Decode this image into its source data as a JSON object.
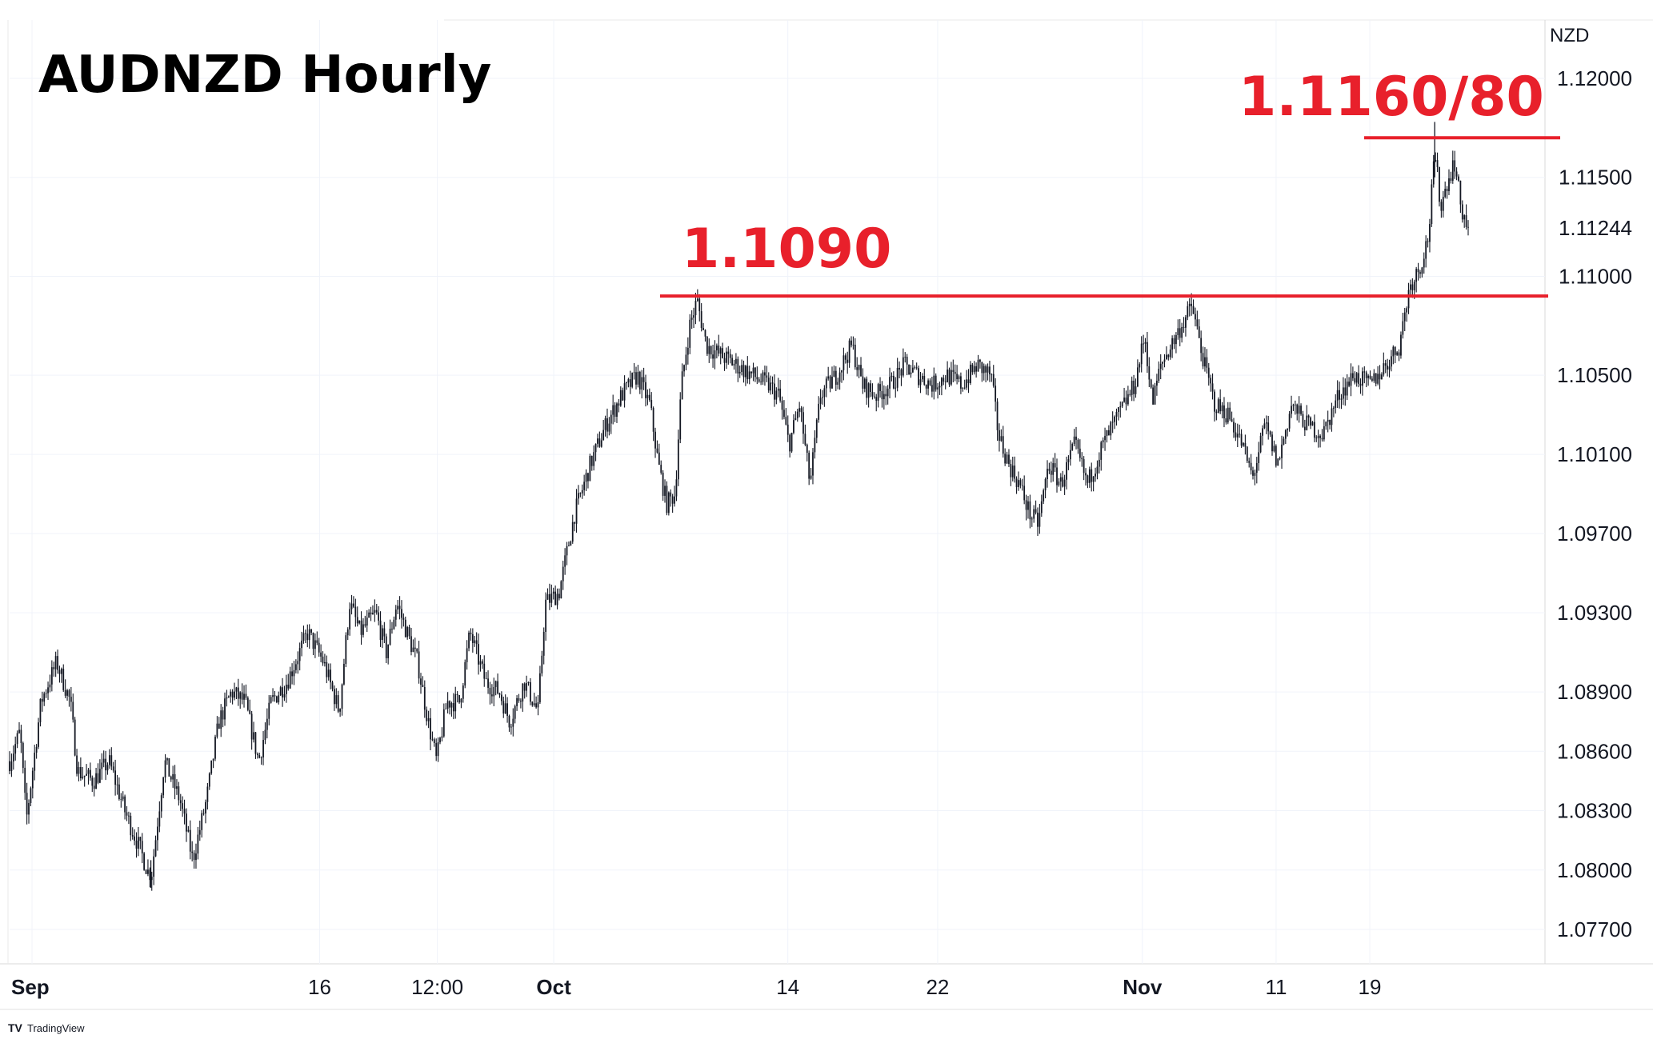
{
  "chart_data": {
    "type": "candlestick",
    "title": "AUDNZD Hourly",
    "currency": "NZD",
    "watermark": "TradingView",
    "ylim": [
      1.0755,
      1.1215
    ],
    "y_ticks": [
      "1.12000",
      "1.11500",
      "1.11244",
      "1.11000",
      "1.10500",
      "1.10100",
      "1.09700",
      "1.09300",
      "1.08900",
      "1.08600",
      "1.08300",
      "1.08000",
      "1.07700"
    ],
    "x_ticks": [
      {
        "label": "Sep",
        "pos": 0.0,
        "bold": true
      },
      {
        "label": "16",
        "pos": 0.215,
        "bold": false
      },
      {
        "label": "12:00",
        "pos": 0.303,
        "bold": false
      },
      {
        "label": "Oct",
        "pos": 0.39,
        "bold": true
      },
      {
        "label": "14",
        "pos": 0.565,
        "bold": false
      },
      {
        "label": "22",
        "pos": 0.677,
        "bold": false
      },
      {
        "label": "Nov",
        "pos": 0.83,
        "bold": true
      },
      {
        "label": "11",
        "pos": 0.93,
        "bold": false
      },
      {
        "label": "19",
        "pos": 1.0,
        "bold": false
      }
    ],
    "key_points": [
      {
        "t": 0.0,
        "v": 1.0855
      },
      {
        "t": 0.01,
        "v": 1.087
      },
      {
        "t": 0.016,
        "v": 1.0825
      },
      {
        "t": 0.03,
        "v": 1.0885
      },
      {
        "t": 0.045,
        "v": 1.0905
      },
      {
        "t": 0.058,
        "v": 1.0885
      },
      {
        "t": 0.065,
        "v": 1.085
      },
      {
        "t": 0.08,
        "v": 1.0845
      },
      {
        "t": 0.095,
        "v": 1.0855
      },
      {
        "t": 0.11,
        "v": 1.083
      },
      {
        "t": 0.125,
        "v": 1.081
      },
      {
        "t": 0.135,
        "v": 1.0795
      },
      {
        "t": 0.148,
        "v": 1.0855
      },
      {
        "t": 0.163,
        "v": 1.0835
      },
      {
        "t": 0.175,
        "v": 1.0805
      },
      {
        "t": 0.188,
        "v": 1.0835
      },
      {
        "t": 0.2,
        "v": 1.0875
      },
      {
        "t": 0.212,
        "v": 1.089
      },
      {
        "t": 0.225,
        "v": 1.0885
      },
      {
        "t": 0.238,
        "v": 1.0855
      },
      {
        "t": 0.25,
        "v": 1.0885
      },
      {
        "t": 0.265,
        "v": 1.0895
      },
      {
        "t": 0.285,
        "v": 1.092
      },
      {
        "t": 0.3,
        "v": 1.0905
      },
      {
        "t": 0.315,
        "v": 1.088
      },
      {
        "t": 0.325,
        "v": 1.0935
      },
      {
        "t": 0.335,
        "v": 1.092
      },
      {
        "t": 0.35,
        "v": 1.093
      },
      {
        "t": 0.36,
        "v": 1.091
      },
      {
        "t": 0.37,
        "v": 1.0935
      },
      {
        "t": 0.383,
        "v": 1.0915
      },
      {
        "t": 0.39,
        "v": 1.0905
      },
      {
        "t": 0.4,
        "v": 1.0875
      },
      {
        "t": 0.408,
        "v": 1.0855
      },
      {
        "t": 0.418,
        "v": 1.0885
      },
      {
        "t": 0.43,
        "v": 1.0885
      },
      {
        "t": 0.44,
        "v": 1.092
      },
      {
        "t": 0.455,
        "v": 1.0895
      },
      {
        "t": 0.468,
        "v": 1.089
      },
      {
        "t": 0.478,
        "v": 1.0875
      },
      {
        "t": 0.492,
        "v": 1.0895
      },
      {
        "t": 0.505,
        "v": 1.088
      },
      {
        "t": 0.512,
        "v": 1.0935
      },
      {
        "t": 0.525,
        "v": 1.094
      },
      {
        "t": 0.54,
        "v": 1.098
      },
      {
        "t": 0.555,
        "v": 1.1005
      },
      {
        "t": 0.57,
        "v": 1.1025
      },
      {
        "t": 0.585,
        "v": 1.104
      },
      {
        "t": 0.6,
        "v": 1.105
      },
      {
        "t": 0.612,
        "v": 1.1035
      },
      {
        "t": 0.62,
        "v": 1.1005
      },
      {
        "t": 0.628,
        "v": 1.0985
      },
      {
        "t": 0.636,
        "v": 1.099
      },
      {
        "t": 0.642,
        "v": 1.1045
      },
      {
        "t": 0.65,
        "v": 1.1075
      },
      {
        "t": 0.657,
        "v": 1.1088
      },
      {
        "t": 0.666,
        "v": 1.1065
      },
      {
        "t": 0.68,
        "v": 1.106
      },
      {
        "t": 0.695,
        "v": 1.1055
      },
      {
        "t": 0.71,
        "v": 1.105
      },
      {
        "t": 0.725,
        "v": 1.1045
      },
      {
        "t": 0.735,
        "v": 1.104
      },
      {
        "t": 0.745,
        "v": 1.1015
      },
      {
        "t": 0.755,
        "v": 1.1035
      },
      {
        "t": 0.765,
        "v": 1.0995
      },
      {
        "t": 0.775,
        "v": 1.104
      },
      {
        "t": 0.79,
        "v": 1.105
      },
      {
        "t": 0.805,
        "v": 1.1065
      },
      {
        "t": 0.815,
        "v": 1.1045
      },
      {
        "t": 0.828,
        "v": 1.104
      },
      {
        "t": 0.842,
        "v": 1.1045
      },
      {
        "t": 0.855,
        "v": 1.1055
      },
      {
        "t": 0.868,
        "v": 1.105
      },
      {
        "t": 0.882,
        "v": 1.1045
      },
      {
        "t": 0.896,
        "v": 1.105
      },
      {
        "t": 0.91,
        "v": 1.1045
      },
      {
        "t": 0.925,
        "v": 1.1055
      },
      {
        "t": 0.938,
        "v": 1.105
      },
      {
        "t": 0.945,
        "v": 1.102
      },
      {
        "t": 0.955,
        "v": 1.1005
      },
      {
        "t": 0.965,
        "v": 1.0995
      },
      {
        "t": 0.975,
        "v": 1.098
      },
      {
        "t": 0.983,
        "v": 1.0975
      },
      {
        "t": 0.993,
        "v": 1.1005
      },
      {
        "t": 1.005,
        "v": 1.0995
      },
      {
        "t": 1.018,
        "v": 1.1015
      },
      {
        "t": 1.03,
        "v": 1.0995
      },
      {
        "t": 1.045,
        "v": 1.1015
      },
      {
        "t": 1.06,
        "v": 1.103
      },
      {
        "t": 1.075,
        "v": 1.1045
      },
      {
        "t": 1.085,
        "v": 1.107
      },
      {
        "t": 1.092,
        "v": 1.1035
      },
      {
        "t": 1.1,
        "v": 1.1055
      },
      {
        "t": 1.115,
        "v": 1.107
      },
      {
        "t": 1.13,
        "v": 1.1085
      },
      {
        "t": 1.142,
        "v": 1.1055
      },
      {
        "t": 1.152,
        "v": 1.1035
      },
      {
        "t": 1.165,
        "v": 1.103
      },
      {
        "t": 1.178,
        "v": 1.1015
      },
      {
        "t": 1.188,
        "v": 1.0998
      },
      {
        "t": 1.2,
        "v": 1.1025
      },
      {
        "t": 1.212,
        "v": 1.1005
      },
      {
        "t": 1.225,
        "v": 1.1035
      },
      {
        "t": 1.24,
        "v": 1.1025
      },
      {
        "t": 1.255,
        "v": 1.102
      },
      {
        "t": 1.27,
        "v": 1.104
      },
      {
        "t": 1.285,
        "v": 1.105
      },
      {
        "t": 1.3,
        "v": 1.1045
      },
      {
        "t": 1.315,
        "v": 1.1055
      },
      {
        "t": 1.328,
        "v": 1.1065
      },
      {
        "t": 1.338,
        "v": 1.1095
      },
      {
        "t": 1.348,
        "v": 1.1105
      },
      {
        "t": 1.356,
        "v": 1.112
      },
      {
        "t": 1.362,
        "v": 1.1162
      },
      {
        "t": 1.368,
        "v": 1.1135
      },
      {
        "t": 1.374,
        "v": 1.1148
      },
      {
        "t": 1.381,
        "v": 1.1158
      },
      {
        "t": 1.387,
        "v": 1.1135
      },
      {
        "t": 1.394,
        "v": 1.1124
      }
    ],
    "price_range": {
      "low": 1.0791,
      "high": 1.1178
    },
    "last_price": 1.11244,
    "lines": [
      {
        "label": "1.1090",
        "value": 1.109
      },
      {
        "label": "1.1160/80",
        "value": 1.117
      }
    ]
  }
}
